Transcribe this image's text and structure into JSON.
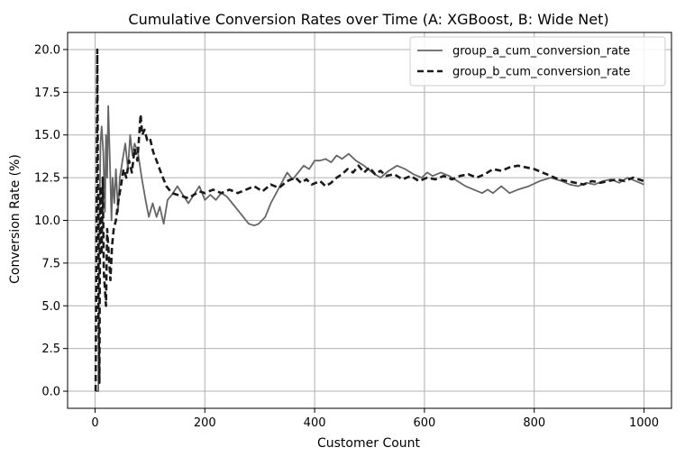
{
  "chart_data": {
    "type": "line",
    "title": "Cumulative Conversion Rates over Time (A: XGBoost, B: Wide Net)",
    "xlabel": "Customer Count",
    "ylabel": "Conversion Rate (%)",
    "xlim": [
      -50,
      1050
    ],
    "ylim": [
      -1.0,
      21.0
    ],
    "xticks": [
      0,
      200,
      400,
      600,
      800,
      1000
    ],
    "xtick_labels": [
      "0",
      "200",
      "400",
      "600",
      "800",
      "1000"
    ],
    "yticks": [
      0.0,
      2.5,
      5.0,
      7.5,
      10.0,
      12.5,
      15.0,
      17.5,
      20.0
    ],
    "ytick_labels": [
      "0.0",
      "2.5",
      "5.0",
      "7.5",
      "10.0",
      "12.5",
      "15.0",
      "17.5",
      "20.0"
    ],
    "grid": true,
    "legend_position": "top-right",
    "series": [
      {
        "name": "group_a_cum_conversion_rate",
        "color": "#666666",
        "line_style": "solid",
        "points": [
          [
            1,
            0
          ],
          [
            6,
            0
          ],
          [
            8,
            10
          ],
          [
            10,
            14.5
          ],
          [
            12,
            15.5
          ],
          [
            15,
            14
          ],
          [
            18,
            10.5
          ],
          [
            20,
            15
          ],
          [
            22,
            12.5
          ],
          [
            24,
            16.7
          ],
          [
            27,
            13.5
          ],
          [
            30,
            10
          ],
          [
            32,
            12.5
          ],
          [
            35,
            11
          ],
          [
            38,
            13
          ],
          [
            42,
            10.5
          ],
          [
            45,
            12.5
          ],
          [
            50,
            13.5
          ],
          [
            55,
            14.5
          ],
          [
            60,
            13
          ],
          [
            64,
            15
          ],
          [
            68,
            13.8
          ],
          [
            72,
            14.5
          ],
          [
            78,
            14
          ],
          [
            85,
            12.5
          ],
          [
            92,
            11.2
          ],
          [
            98,
            10.2
          ],
          [
            105,
            11
          ],
          [
            112,
            10.2
          ],
          [
            118,
            10.8
          ],
          [
            125,
            9.8
          ],
          [
            132,
            11.2
          ],
          [
            140,
            11.5
          ],
          [
            150,
            12
          ],
          [
            160,
            11.5
          ],
          [
            170,
            11
          ],
          [
            180,
            11.5
          ],
          [
            190,
            12
          ],
          [
            200,
            11.2
          ],
          [
            210,
            11.5
          ],
          [
            220,
            11.2
          ],
          [
            230,
            11.6
          ],
          [
            240,
            11.4
          ],
          [
            250,
            11
          ],
          [
            260,
            10.6
          ],
          [
            270,
            10.2
          ],
          [
            280,
            9.8
          ],
          [
            290,
            9.7
          ],
          [
            298,
            9.8
          ],
          [
            310,
            10.2
          ],
          [
            320,
            11
          ],
          [
            330,
            11.6
          ],
          [
            340,
            12.2
          ],
          [
            350,
            12.8
          ],
          [
            360,
            12.4
          ],
          [
            370,
            12.8
          ],
          [
            380,
            13.2
          ],
          [
            390,
            13
          ],
          [
            400,
            13.5
          ],
          [
            410,
            13.5
          ],
          [
            420,
            13.6
          ],
          [
            430,
            13.4
          ],
          [
            440,
            13.8
          ],
          [
            450,
            13.6
          ],
          [
            462,
            13.9
          ],
          [
            475,
            13.5
          ],
          [
            490,
            13.2
          ],
          [
            505,
            12.8
          ],
          [
            520,
            12.5
          ],
          [
            535,
            12.9
          ],
          [
            550,
            13.2
          ],
          [
            565,
            13
          ],
          [
            580,
            12.7
          ],
          [
            595,
            12.5
          ],
          [
            605,
            12.8
          ],
          [
            615,
            12.6
          ],
          [
            630,
            12.8
          ],
          [
            645,
            12.6
          ],
          [
            660,
            12.3
          ],
          [
            675,
            12
          ],
          [
            690,
            11.8
          ],
          [
            705,
            11.6
          ],
          [
            715,
            11.8
          ],
          [
            725,
            11.6
          ],
          [
            740,
            12
          ],
          [
            755,
            11.6
          ],
          [
            770,
            11.8
          ],
          [
            790,
            12
          ],
          [
            810,
            12.3
          ],
          [
            830,
            12.5
          ],
          [
            850,
            12.3
          ],
          [
            865,
            12.1
          ],
          [
            880,
            12
          ],
          [
            895,
            12.2
          ],
          [
            910,
            12.1
          ],
          [
            925,
            12.3
          ],
          [
            940,
            12.4
          ],
          [
            955,
            12.2
          ],
          [
            970,
            12.5
          ],
          [
            985,
            12.3
          ],
          [
            1000,
            12.1
          ]
        ]
      },
      {
        "name": "group_b_cum_conversion_rate",
        "color": "#1a1a1a",
        "line_style": "dashed",
        "points": [
          [
            1,
            0
          ],
          [
            3,
            11
          ],
          [
            4,
            20
          ],
          [
            5,
            14
          ],
          [
            6,
            5
          ],
          [
            8,
            0.5
          ],
          [
            9,
            9
          ],
          [
            10,
            12
          ],
          [
            12,
            8
          ],
          [
            14,
            12.5
          ],
          [
            16,
            7
          ],
          [
            18,
            6
          ],
          [
            20,
            5
          ],
          [
            22,
            9.5
          ],
          [
            25,
            8
          ],
          [
            28,
            6.5
          ],
          [
            31,
            8.5
          ],
          [
            34,
            9.5
          ],
          [
            38,
            10
          ],
          [
            42,
            11
          ],
          [
            47,
            12
          ],
          [
            52,
            13
          ],
          [
            57,
            12.5
          ],
          [
            62,
            13.5
          ],
          [
            67,
            12.8
          ],
          [
            72,
            14.2
          ],
          [
            77,
            13.5
          ],
          [
            80,
            14.8
          ],
          [
            83,
            16.2
          ],
          [
            86,
            15
          ],
          [
            90,
            15.3
          ],
          [
            95,
            14.7
          ],
          [
            100,
            14.8
          ],
          [
            106,
            14
          ],
          [
            112,
            13.5
          ],
          [
            120,
            12.8
          ],
          [
            130,
            12
          ],
          [
            140,
            11.6
          ],
          [
            150,
            11.5
          ],
          [
            160,
            11.4
          ],
          [
            170,
            11.3
          ],
          [
            180,
            11.5
          ],
          [
            190,
            11.7
          ],
          [
            200,
            11.6
          ],
          [
            215,
            11.8
          ],
          [
            230,
            11.6
          ],
          [
            245,
            11.8
          ],
          [
            260,
            11.6
          ],
          [
            275,
            11.8
          ],
          [
            290,
            12
          ],
          [
            305,
            11.7
          ],
          [
            320,
            12.1
          ],
          [
            335,
            11.9
          ],
          [
            350,
            12.3
          ],
          [
            365,
            12.5
          ],
          [
            375,
            12.2
          ],
          [
            385,
            12.4
          ],
          [
            395,
            12.1
          ],
          [
            410,
            12.3
          ],
          [
            420,
            12
          ],
          [
            430,
            12.2
          ],
          [
            440,
            12.5
          ],
          [
            450,
            12.7
          ],
          [
            460,
            13
          ],
          [
            470,
            12.8
          ],
          [
            480,
            13.2
          ],
          [
            490,
            12.8
          ],
          [
            500,
            13.1
          ],
          [
            510,
            12.7
          ],
          [
            520,
            12.9
          ],
          [
            530,
            12.6
          ],
          [
            545,
            12.7
          ],
          [
            560,
            12.4
          ],
          [
            575,
            12.6
          ],
          [
            590,
            12.3
          ],
          [
            605,
            12.5
          ],
          [
            620,
            12.4
          ],
          [
            635,
            12.6
          ],
          [
            650,
            12.4
          ],
          [
            665,
            12.6
          ],
          [
            680,
            12.7
          ],
          [
            695,
            12.5
          ],
          [
            710,
            12.7
          ],
          [
            725,
            13
          ],
          [
            740,
            12.9
          ],
          [
            755,
            13.1
          ],
          [
            770,
            13.2
          ],
          [
            785,
            13.1
          ],
          [
            800,
            13
          ],
          [
            815,
            12.8
          ],
          [
            830,
            12.6
          ],
          [
            845,
            12.4
          ],
          [
            860,
            12.3
          ],
          [
            875,
            12.2
          ],
          [
            890,
            12.1
          ],
          [
            905,
            12.3
          ],
          [
            920,
            12.2
          ],
          [
            935,
            12.3
          ],
          [
            950,
            12.4
          ],
          [
            965,
            12.3
          ],
          [
            980,
            12.5
          ],
          [
            990,
            12.4
          ],
          [
            1000,
            12.3
          ]
        ]
      }
    ]
  }
}
